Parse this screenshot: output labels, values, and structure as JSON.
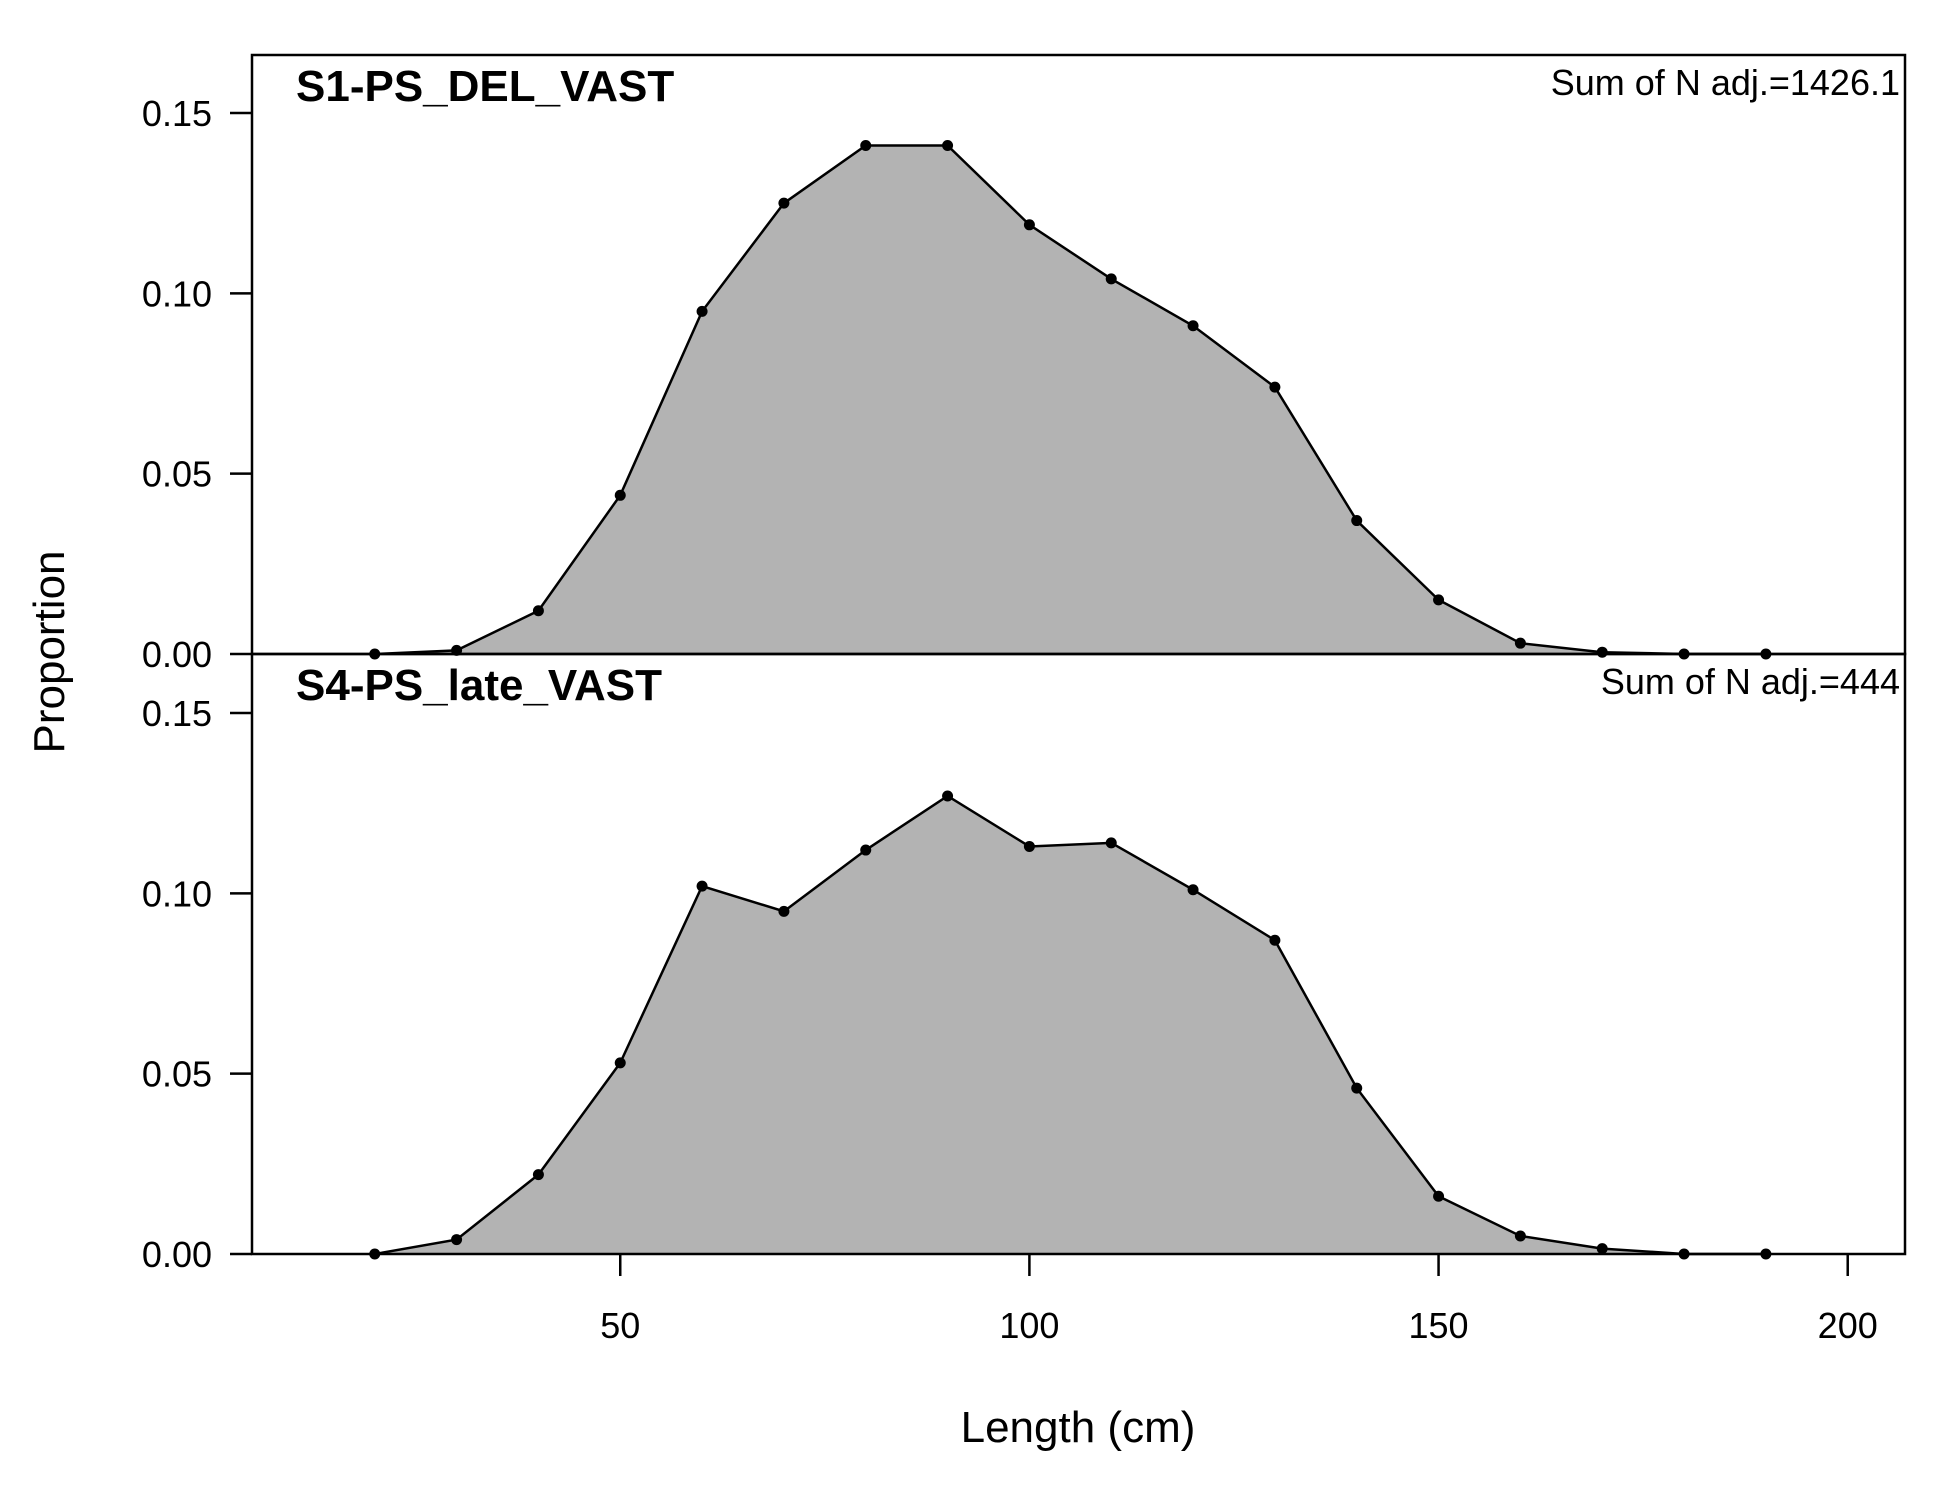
{
  "chart_data": {
    "type": "area",
    "xlabel": "Length (cm)",
    "ylabel": "Proportion",
    "xlim": [
      5,
      207
    ],
    "x_ticks": [
      50,
      100,
      150,
      200
    ],
    "y_ticks": [
      "0.00",
      "0.05",
      "0.10",
      "0.15"
    ],
    "fill_color": "#b3b3b3",
    "line_color": "#000000",
    "grid": false,
    "panels": [
      {
        "title": "S1-PS_DEL_VAST",
        "annotation": "Sum of N adj.=1426.1",
        "ylim": [
          0,
          0.165
        ],
        "x": [
          20,
          30,
          40,
          50,
          60,
          70,
          80,
          90,
          100,
          110,
          120,
          130,
          140,
          150,
          160,
          170,
          180,
          190
        ],
        "values": [
          0.0,
          0.001,
          0.012,
          0.044,
          0.095,
          0.125,
          0.141,
          0.141,
          0.119,
          0.104,
          0.091,
          0.074,
          0.037,
          0.015,
          0.003,
          0.0005,
          0.0,
          0.0
        ]
      },
      {
        "title": "S4-PS_late_VAST",
        "annotation": "Sum of N adj.=444",
        "ylim": [
          0,
          0.15
        ],
        "x": [
          20,
          30,
          40,
          50,
          60,
          70,
          80,
          90,
          100,
          110,
          120,
          130,
          140,
          150,
          160,
          170,
          180,
          190
        ],
        "values": [
          0.0,
          0.004,
          0.022,
          0.053,
          0.102,
          0.095,
          0.112,
          0.127,
          0.113,
          0.114,
          0.101,
          0.087,
          0.046,
          0.016,
          0.005,
          0.0015,
          0.0,
          0.0
        ]
      }
    ]
  }
}
